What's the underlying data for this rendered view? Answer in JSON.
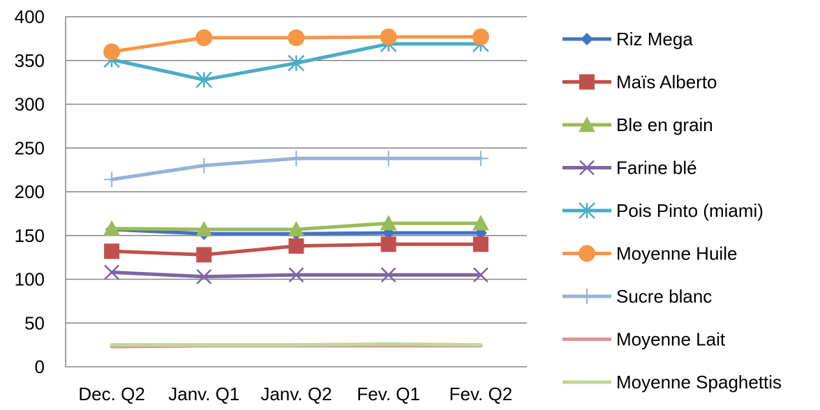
{
  "chart_data": {
    "type": "line",
    "title": "",
    "xlabel": "",
    "ylabel": "",
    "categories": [
      "Dec. Q2",
      "Janv. Q1",
      "Janv. Q2",
      "Fev. Q1",
      "Fev. Q2"
    ],
    "ylim": [
      0,
      400
    ],
    "yticks": [
      "0",
      "50",
      "100",
      "150",
      "200",
      "250",
      "300",
      "350",
      "400"
    ],
    "ytick_values": [
      0,
      50,
      100,
      150,
      200,
      250,
      300,
      350,
      400
    ],
    "grid": "horizontal",
    "legend_position": "right",
    "series": [
      {
        "name": "Riz Mega",
        "values": [
          157,
          152,
          152,
          153,
          153
        ],
        "color": "#4472C4",
        "marker": "diamond"
      },
      {
        "name": "Maïs Alberto",
        "values": [
          132,
          128,
          138,
          140,
          140
        ],
        "color": "#C0504D",
        "marker": "square"
      },
      {
        "name": "Ble en grain",
        "values": [
          158,
          157,
          157,
          164,
          164
        ],
        "color": "#9BBB59",
        "marker": "triangle"
      },
      {
        "name": "Farine blé",
        "values": [
          108,
          103,
          105,
          105,
          105
        ],
        "color": "#8064A2",
        "marker": "x"
      },
      {
        "name": "Pois Pinto (miami)",
        "values": [
          351,
          328,
          347,
          369,
          369
        ],
        "color": "#4BACC6",
        "marker": "asterisk"
      },
      {
        "name": "Moyenne Huile",
        "values": [
          360,
          376,
          376,
          377,
          377
        ],
        "color": "#F79646",
        "marker": "circle"
      },
      {
        "name": "Sucre blanc",
        "values": [
          214,
          230,
          238,
          238,
          238
        ],
        "color": "#95B3D7",
        "marker": "plus"
      },
      {
        "name": "Moyenne Lait",
        "values": [
          23,
          24,
          24,
          24,
          24
        ],
        "color": "#D99694",
        "marker": "none"
      },
      {
        "name": "Moyenne Spaghettis",
        "values": [
          25,
          25,
          25,
          26,
          25
        ],
        "color": "#C3D69B",
        "marker": "none"
      }
    ]
  }
}
